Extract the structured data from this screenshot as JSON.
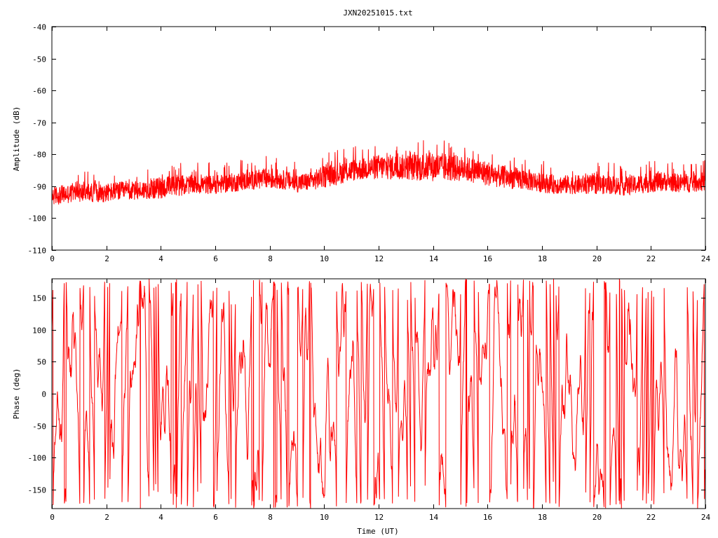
{
  "figure": {
    "title": "JXN20251015.txt"
  },
  "chart_data": [
    {
      "type": "line",
      "name": "amplitude-panel",
      "ylabel": "Amplitude (dB)",
      "xlabel": "",
      "xlim": [
        0,
        24
      ],
      "ylim": [
        -110,
        -40
      ],
      "xticks": [
        0,
        2,
        4,
        6,
        8,
        10,
        12,
        14,
        16,
        18,
        20,
        22,
        24
      ],
      "yticks": [
        -40,
        -50,
        -60,
        -70,
        -80,
        -90,
        -100,
        -110
      ],
      "color": "#ff0000",
      "grid": false,
      "x": [
        0,
        0.5,
        1,
        1.5,
        2,
        2.5,
        3,
        3.5,
        4,
        4.5,
        5,
        5.5,
        6,
        6.5,
        7,
        7.5,
        8,
        8.5,
        9,
        9.5,
        10,
        10.5,
        11,
        11.5,
        12,
        12.5,
        13,
        13.5,
        14,
        14.5,
        15,
        15.5,
        16,
        16.5,
        17,
        17.5,
        18,
        18.5,
        19,
        19.5,
        20,
        20.5,
        21,
        21.5,
        22,
        22.5,
        23,
        23.5,
        24
      ],
      "y_mean": [
        -93,
        -92.5,
        -92,
        -92,
        -92,
        -91.5,
        -91.5,
        -91,
        -90.5,
        -90,
        -89.5,
        -89.5,
        -89.5,
        -89,
        -88.5,
        -88,
        -87.5,
        -88,
        -89,
        -88.5,
        -87,
        -86,
        -85,
        -84.5,
        -84,
        -84,
        -84,
        -84,
        -84,
        -84,
        -84.5,
        -85,
        -86,
        -87,
        -87.5,
        -88,
        -89,
        -89.5,
        -89.5,
        -89.5,
        -89.5,
        -89.5,
        -90,
        -89.5,
        -88.5,
        -88.5,
        -89,
        -89,
        -88.5
      ],
      "y_spread": [
        3,
        3,
        3,
        3,
        3,
        3,
        3,
        3,
        3.5,
        3.5,
        3,
        3,
        3,
        3,
        3,
        3,
        3.5,
        3,
        3,
        3,
        3.5,
        3.5,
        3.5,
        3.5,
        4,
        4,
        4,
        4.5,
        4.5,
        4.5,
        4,
        4,
        4,
        3.5,
        3.5,
        3.5,
        3,
        3,
        3,
        3,
        3,
        3,
        3,
        3,
        3.5,
        3,
        3,
        3,
        3
      ]
    },
    {
      "type": "line",
      "name": "phase-panel",
      "ylabel": "Phase (deg)",
      "xlabel": "Time (UT)",
      "xlim": [
        0,
        24
      ],
      "ylim": [
        -180,
        180
      ],
      "xticks": [
        0,
        2,
        4,
        6,
        8,
        10,
        12,
        14,
        16,
        18,
        20,
        22,
        24
      ],
      "yticks": [
        150,
        100,
        50,
        0,
        -50,
        -100,
        -150
      ],
      "color": "#ff0000",
      "grid": false,
      "wrapped": true
    }
  ]
}
